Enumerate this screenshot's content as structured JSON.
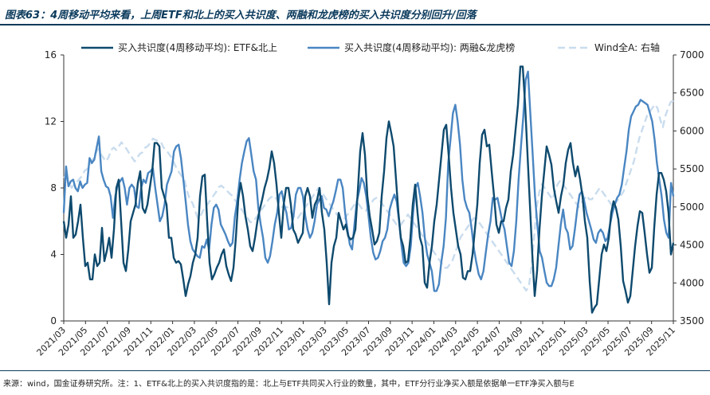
{
  "title": "图表63：4周移动平均来看，上周ETF和北上的买入共识度、两融和龙虎榜的买入共识度分别回升/回落",
  "footnote": "来源：wind，国金证券研究所。注：1、ETF&北上的买入共识度指的是：北上与ETF共同买入行业的数量，其中，ETF分行业净买入额是依据单一ETF净买入额与E",
  "colors": {
    "etf": "#0e4a6e",
    "margin": "#4a86c2",
    "wind": "#c9dcee"
  },
  "chart_data": {
    "type": "line",
    "x_ticks": [
      "2021/03",
      "2021/05",
      "2021/07",
      "2021/09",
      "2021/11",
      "2022/01",
      "2022/03",
      "2022/05",
      "2022/07",
      "2022/09",
      "2022/11",
      "2023/01",
      "2023/03",
      "2023/05",
      "2023/07",
      "2023/09",
      "2023/11",
      "2024/01",
      "2024/03",
      "2024/05",
      "2024/07",
      "2024/09",
      "2024/11",
      "2025/01",
      "2025/03",
      "2025/05",
      "2025/07",
      "2025/09",
      "2025/11"
    ],
    "x_range": [
      "2021/03",
      "2025/11"
    ],
    "y_left": {
      "range": [
        0,
        16
      ],
      "ticks": [
        0,
        4,
        8,
        12,
        16
      ]
    },
    "y_right": {
      "range": [
        3500,
        7000
      ],
      "ticks": [
        3500,
        4000,
        4500,
        5000,
        5500,
        6000,
        6500,
        7000
      ]
    },
    "legend_position": "top",
    "series": [
      {
        "name": "买入共识度(4周移动平均): ETF&北上",
        "axis": "left",
        "values": [
          6,
          5,
          5.8,
          7.5,
          5,
          5.2,
          6,
          7,
          5,
          3.3,
          3.5,
          2.5,
          2.5,
          4,
          3.3,
          3.5,
          5.6,
          3.6,
          4.2,
          5,
          3.8,
          5.5,
          8,
          8.5,
          6,
          3.5,
          3,
          4.3,
          6,
          6.5,
          7,
          8.3,
          9,
          6.8,
          6.5,
          7,
          8,
          9,
          10.7,
          10.7,
          10.5,
          8,
          7.5,
          7,
          5,
          5,
          3.8,
          3.5,
          3.6,
          3.4,
          2.5,
          1.5,
          2.2,
          2.7,
          3.5,
          4,
          5,
          7.5,
          8.7,
          8.8,
          6,
          3.5,
          2.5,
          2.8,
          3.2,
          3.5,
          4,
          4.3,
          3.3,
          2.8,
          2.4,
          3.2,
          5,
          7.3,
          8.3,
          7.5,
          6.3,
          5.5,
          4.5,
          4.2,
          5,
          6,
          6.7,
          7.3,
          8,
          8.5,
          9.2,
          10.2,
          9.5,
          8.2,
          6.5,
          5,
          7,
          8,
          8,
          7,
          5.5,
          5.2,
          4.7,
          5,
          5.3,
          7.5,
          8,
          7.5,
          6.2,
          7,
          7.3,
          8,
          6.5,
          5.5,
          3.5,
          1,
          3.5,
          4.5,
          5,
          6.5,
          6,
          5.5,
          5.8,
          5.1,
          4.9,
          5,
          5.5,
          7.8,
          10.2,
          11.3,
          10,
          7.5,
          6.3,
          5.5,
          4.6,
          4.8,
          5.3,
          7.5,
          9,
          11,
          12,
          11.3,
          10.5,
          8.5,
          6.5,
          5,
          4.5,
          3.5,
          3.6,
          5,
          7,
          8.2,
          6.5,
          5,
          4.5,
          2.3,
          2,
          3.5,
          4.5,
          6,
          7,
          8.5,
          10,
          11.5,
          11.8,
          10,
          8,
          6.5,
          5.5,
          4.5,
          4,
          2.6,
          2.5,
          3,
          3,
          4,
          5.5,
          7,
          9.5,
          11.2,
          11.5,
          10.5,
          10.6,
          9,
          7.5,
          5.8,
          5.3,
          6,
          6,
          6.8,
          7.3,
          9,
          10,
          11.5,
          13,
          15.3,
          15.3,
          13,
          10,
          7,
          4,
          1.5,
          3,
          5.5,
          7.5,
          9,
          10.5,
          10,
          9.4,
          8,
          7.2,
          6.5,
          7.5,
          8.2,
          9.5,
          10.3,
          10.7,
          9.5,
          8.7,
          9.3,
          8.5,
          7.5,
          6,
          5,
          2.4,
          0.5,
          0.8,
          1,
          2.5,
          4,
          4.6,
          4.2,
          5,
          6.5,
          7.2,
          6.8,
          6.1,
          4.5,
          2.4,
          1.8,
          1.1,
          1.5,
          3,
          4.5,
          5.7,
          6.6,
          6.5,
          5.3,
          4,
          2.9,
          3.2,
          5.6,
          7.6,
          8.9,
          8.9,
          8.5,
          7.8,
          6.5,
          4,
          4.7
        ]
      },
      {
        "name": "买入共识度(4周移动平均): 两融&龙虎榜",
        "axis": "left",
        "values": [
          6.5,
          9.3,
          8.1,
          8.4,
          8.5,
          8,
          7.8,
          8.4,
          8,
          8.2,
          8.3,
          9.8,
          9.5,
          9.7,
          10.4,
          11.1,
          9,
          8.5,
          8.1,
          8,
          7.5,
          6.2,
          7.5,
          8.2,
          8.4,
          8.6,
          8,
          7,
          8,
          8.2,
          8,
          6.9,
          6.8,
          8,
          8.5,
          8.3,
          8.9,
          9,
          9.2,
          8,
          7,
          6,
          6.3,
          7,
          8.2,
          8.6,
          9,
          10.2,
          10.5,
          10.6,
          9.8,
          8.5,
          7.2,
          5.8,
          4.8,
          4.3,
          4.1,
          3.9,
          3.8,
          4.5,
          4.4,
          4.9,
          4.3,
          5.8,
          6.8,
          7,
          6.7,
          5.8,
          5.5,
          5.2,
          4.8,
          4.5,
          4.7,
          6.3,
          7.2,
          8.5,
          9.5,
          10.2,
          10.8,
          11,
          10,
          9,
          8.5,
          6.8,
          5.8,
          5,
          3.8,
          3.5,
          3.9,
          4.8,
          5.8,
          6.5,
          7.6,
          7.8,
          7,
          6.5,
          5.5,
          5.6,
          6.3,
          7.6,
          8,
          8,
          7.5,
          6.3,
          5.5,
          5,
          5.3,
          6,
          7,
          7.3,
          7.5,
          6.8,
          6.7,
          6.3,
          6.8,
          7.2,
          7.8,
          8.5,
          8.5,
          8,
          6.5,
          5.5,
          4.6,
          4.3,
          5.8,
          7.2,
          7.8,
          8.6,
          8.3,
          7.5,
          6.3,
          5,
          4.1,
          3.7,
          3.8,
          4.2,
          4.8,
          5,
          5.5,
          6.7,
          7.2,
          7.6,
          7.2,
          6,
          4.6,
          3.5,
          3.3,
          3.5,
          4.5,
          6.5,
          8,
          8.3,
          7.5,
          6.5,
          5,
          4,
          3.5,
          3,
          1.8,
          1.8,
          2.2,
          3.5,
          4.5,
          6.2,
          9.5,
          11,
          12.5,
          13,
          12,
          10.6,
          8.5,
          7.3,
          6.8,
          6.5,
          5.5,
          4.3,
          3.5,
          2.8,
          2.5,
          3,
          4.1,
          5.2,
          6,
          7.4,
          7.3,
          7.4,
          6.7,
          6,
          5.5,
          4.5,
          3.5,
          3.3,
          4.2,
          6,
          8.5,
          10.5,
          12.3,
          14.5,
          15,
          12.5,
          10,
          7.5,
          5.8,
          4.2,
          3.8,
          3,
          2.3,
          2.1,
          2.1,
          2.5,
          3.2,
          4.5,
          5.8,
          6.7,
          5.6,
          5.3,
          4.3,
          4.5,
          5.5,
          6.7,
          7.6,
          7.8,
          7.2,
          6.5,
          6,
          5.5,
          4.9,
          4.7,
          5.3,
          5.5,
          5.3,
          4.8,
          5,
          5.8,
          6.5,
          7,
          7.4,
          7.6,
          8.2,
          9.2,
          10.2,
          11.5,
          12.3,
          12.6,
          12.9,
          13,
          13.3,
          13.2,
          13.1,
          13,
          12.5,
          12,
          10.9,
          9.5,
          8.5,
          7.5,
          6.1,
          5.3,
          5,
          8.3,
          7.5
        ]
      },
      {
        "name": "Wind全A: 右轴",
        "axis": "right",
        "values": [
          5400,
          5380,
          5320,
          5250,
          5300,
          5330,
          5370,
          5410,
          5480,
          5500,
          5550,
          5620,
          5700,
          5760,
          5700,
          5650,
          5600,
          5650,
          5750,
          5780,
          5750,
          5800,
          5850,
          5800,
          5760,
          5700,
          5650,
          5600,
          5650,
          5700,
          5720,
          5780,
          5800,
          5850,
          5900,
          5880,
          5870,
          5850,
          5780,
          5750,
          5700,
          5650,
          5580,
          5500,
          5450,
          5400,
          5350,
          5200,
          5100,
          5050,
          4950,
          4850,
          4880,
          4950,
          5000,
          5050,
          5100,
          5150,
          5200,
          5260,
          5280,
          5250,
          5220,
          5180,
          5150,
          5100,
          5050,
          5000,
          4950,
          4900,
          4850,
          4800,
          4800,
          4850,
          4900,
          4950,
          5000,
          5050,
          5100,
          5130,
          5150,
          5100,
          5050,
          5000,
          5000,
          5000,
          4950,
          4900,
          4850,
          4850,
          4900,
          4950,
          5000,
          5050,
          5100,
          5150,
          5200,
          5250,
          5200,
          5150,
          5100,
          5050,
          5000,
          4950,
          4900,
          4850,
          4850,
          4850,
          4900,
          4950,
          5000,
          5050,
          5050,
          5000,
          4950,
          4950,
          5000,
          5050,
          5100,
          5120,
          5100,
          5050,
          5000,
          4950,
          4900,
          4850,
          4800,
          4750,
          4750,
          4800,
          4850,
          4900,
          4850,
          4800,
          4750,
          4700,
          4650,
          4600,
          4550,
          4500,
          4450,
          4400,
          4350,
          4300,
          4250,
          4200,
          4200,
          4250,
          4300,
          4400,
          4500,
          4600,
          4650,
          4700,
          4750,
          4800,
          4850,
          4850,
          4800,
          4750,
          4700,
          4650,
          4600,
          4550,
          4500,
          4450,
          4400,
          4350,
          4300,
          4250,
          4200,
          4150,
          4100,
          4050,
          4000,
          3950,
          3900,
          3950,
          4200,
          4600,
          5000,
          5200,
          5300,
          5250,
          5200,
          5150,
          5100,
          5200,
          5300,
          5350,
          5300,
          5250,
          5200,
          5150,
          5100,
          5050,
          5000,
          5050,
          5100,
          5150,
          5100,
          5100,
          5150,
          5200,
          5250,
          5200,
          5150,
          5100,
          5050,
          5000,
          5050,
          5100,
          5150,
          5200,
          5300,
          5400,
          5500,
          5600,
          5750,
          5900,
          6000,
          6100,
          6200,
          6250,
          6300,
          6350,
          6300,
          6150,
          6050,
          6200,
          6300,
          6380,
          6400
        ]
      }
    ]
  }
}
